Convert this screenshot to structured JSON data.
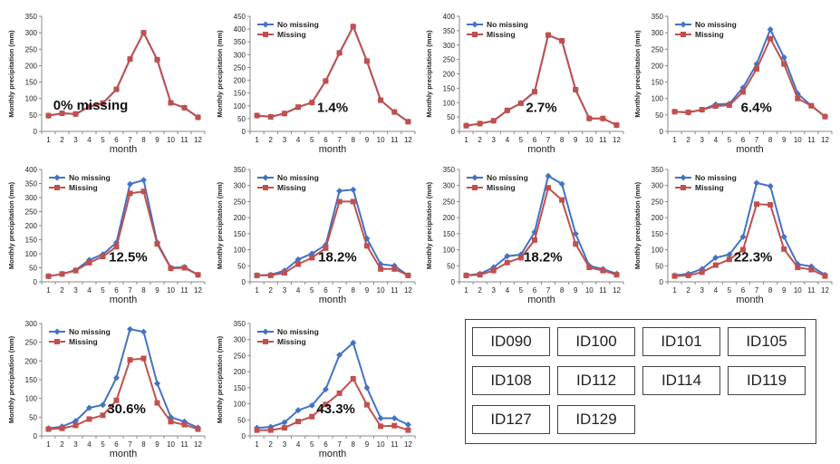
{
  "common": {
    "ylabel": "Monthly precipitation (mm)",
    "xlabel": "month",
    "legend": [
      "No missing",
      "Missing"
    ],
    "colors": {
      "no_missing": "#4472c4",
      "missing": "#c0504d"
    }
  },
  "chart_data": [
    {
      "type": "line",
      "annotation": "0% missing",
      "x": [
        1,
        2,
        3,
        4,
        5,
        6,
        7,
        8,
        9,
        10,
        11,
        12
      ],
      "ylim": [
        0,
        350
      ],
      "yticks": [
        0,
        50,
        100,
        150,
        200,
        250,
        300,
        350
      ],
      "legend_position": "none",
      "series": [
        {
          "name": "No missing",
          "values": [
            48,
            55,
            53,
            75,
            86,
            128,
            220,
            300,
            218,
            87,
            72,
            43
          ]
        },
        {
          "name": "Missing",
          "values": [
            48,
            55,
            53,
            75,
            86,
            128,
            220,
            300,
            218,
            87,
            72,
            43
          ]
        }
      ]
    },
    {
      "type": "line",
      "annotation": "1.4%",
      "x": [
        1,
        2,
        3,
        4,
        5,
        6,
        7,
        8,
        9,
        10,
        11,
        12
      ],
      "ylim": [
        0,
        450
      ],
      "yticks": [
        0,
        50,
        100,
        150,
        200,
        250,
        300,
        350,
        400,
        450
      ],
      "legend_position": "top-left",
      "series": [
        {
          "name": "No missing",
          "values": [
            62,
            57,
            70,
            95,
            113,
            197,
            307,
            410,
            275,
            122,
            76,
            38
          ]
        },
        {
          "name": "Missing",
          "values": [
            62,
            57,
            70,
            95,
            113,
            197,
            307,
            410,
            275,
            122,
            76,
            38
          ]
        }
      ]
    },
    {
      "type": "line",
      "annotation": "2.7%",
      "x": [
        1,
        2,
        3,
        4,
        5,
        6,
        7,
        8,
        9,
        10,
        11,
        12
      ],
      "ylim": [
        0,
        400
      ],
      "yticks": [
        0,
        50,
        100,
        150,
        200,
        250,
        300,
        350,
        400
      ],
      "legend_position": "top-left",
      "series": [
        {
          "name": "No missing",
          "values": [
            20,
            27,
            37,
            73,
            98,
            138,
            335,
            315,
            145,
            45,
            45,
            22
          ]
        },
        {
          "name": "Missing",
          "values": [
            20,
            27,
            37,
            73,
            98,
            138,
            335,
            315,
            145,
            45,
            45,
            22
          ]
        }
      ]
    },
    {
      "type": "line",
      "annotation": "6.4%",
      "x": [
        1,
        2,
        3,
        4,
        5,
        6,
        7,
        8,
        9,
        10,
        11,
        12
      ],
      "ylim": [
        0,
        350
      ],
      "yticks": [
        0,
        50,
        100,
        150,
        200,
        250,
        300,
        350
      ],
      "legend_position": "top-left",
      "series": [
        {
          "name": "No missing",
          "values": [
            60,
            58,
            66,
            82,
            84,
            133,
            205,
            310,
            225,
            115,
            78,
            45
          ]
        },
        {
          "name": "Missing",
          "values": [
            60,
            58,
            66,
            77,
            80,
            120,
            190,
            282,
            205,
            100,
            78,
            45
          ]
        }
      ]
    },
    {
      "type": "line",
      "annotation": "12.5%",
      "x": [
        1,
        2,
        3,
        4,
        5,
        6,
        7,
        8,
        9,
        10,
        11,
        12
      ],
      "ylim": [
        0,
        400
      ],
      "yticks": [
        0,
        50,
        100,
        150,
        200,
        250,
        300,
        350,
        400
      ],
      "legend_position": "top-left",
      "series": [
        {
          "name": "No missing",
          "values": [
            20,
            28,
            42,
            78,
            98,
            140,
            348,
            362,
            140,
            50,
            53,
            25
          ]
        },
        {
          "name": "Missing",
          "values": [
            20,
            28,
            40,
            68,
            90,
            125,
            315,
            322,
            135,
            48,
            50,
            25
          ]
        }
      ]
    },
    {
      "type": "line",
      "annotation": "18.2%",
      "x": [
        1,
        2,
        3,
        4,
        5,
        6,
        7,
        8,
        9,
        10,
        11,
        12
      ],
      "ylim": [
        0,
        350
      ],
      "yticks": [
        0,
        50,
        100,
        150,
        200,
        250,
        300,
        350
      ],
      "legend_position": "top-left",
      "series": [
        {
          "name": "No missing",
          "values": [
            20,
            22,
            35,
            70,
            88,
            115,
            283,
            287,
            135,
            55,
            50,
            20
          ]
        },
        {
          "name": "Missing",
          "values": [
            20,
            20,
            28,
            55,
            75,
            105,
            250,
            250,
            112,
            40,
            40,
            20
          ]
        }
      ]
    },
    {
      "type": "line",
      "annotation": "18.2%",
      "x": [
        1,
        2,
        3,
        4,
        5,
        6,
        7,
        8,
        9,
        10,
        11,
        12
      ],
      "ylim": [
        0,
        350
      ],
      "yticks": [
        0,
        50,
        100,
        150,
        200,
        250,
        300,
        350
      ],
      "legend_position": "top-left",
      "series": [
        {
          "name": "No missing",
          "values": [
            20,
            25,
            45,
            80,
            85,
            155,
            330,
            305,
            150,
            50,
            40,
            25
          ]
        },
        {
          "name": "Missing",
          "values": [
            20,
            22,
            35,
            60,
            75,
            130,
            293,
            255,
            118,
            45,
            35,
            22
          ]
        }
      ]
    },
    {
      "type": "line",
      "annotation": "22.3%",
      "x": [
        1,
        2,
        3,
        4,
        5,
        6,
        7,
        8,
        9,
        10,
        11,
        12
      ],
      "ylim": [
        0,
        350
      ],
      "yticks": [
        0,
        50,
        100,
        150,
        200,
        250,
        300,
        350
      ],
      "legend_position": "top-left",
      "series": [
        {
          "name": "No missing",
          "values": [
            20,
            25,
            40,
            75,
            85,
            140,
            308,
            298,
            140,
            55,
            48,
            22
          ]
        },
        {
          "name": "Missing",
          "values": [
            18,
            20,
            30,
            52,
            70,
            100,
            242,
            240,
            102,
            45,
            38,
            18
          ]
        }
      ]
    },
    {
      "type": "line",
      "annotation": "30.6%",
      "x": [
        1,
        2,
        3,
        4,
        5,
        6,
        7,
        8,
        9,
        10,
        11,
        12
      ],
      "ylim": [
        0,
        300
      ],
      "yticks": [
        0,
        50,
        100,
        150,
        200,
        250,
        300
      ],
      "legend_position": "top-left",
      "series": [
        {
          "name": "No missing",
          "values": [
            20,
            25,
            40,
            75,
            83,
            155,
            285,
            278,
            140,
            50,
            38,
            22
          ]
        },
        {
          "name": "Missing",
          "values": [
            18,
            20,
            28,
            45,
            55,
            95,
            203,
            207,
            88,
            38,
            30,
            18
          ]
        }
      ]
    },
    {
      "type": "line",
      "annotation": "43.3%",
      "x": [
        1,
        2,
        3,
        4,
        5,
        6,
        7,
        8,
        9,
        10,
        11,
        12
      ],
      "ylim": [
        0,
        350
      ],
      "yticks": [
        0,
        50,
        100,
        150,
        200,
        250,
        300,
        350
      ],
      "legend_position": "top-left",
      "series": [
        {
          "name": "No missing",
          "values": [
            25,
            28,
            42,
            80,
            95,
            145,
            252,
            290,
            150,
            55,
            55,
            35
          ]
        },
        {
          "name": "Missing",
          "values": [
            18,
            18,
            25,
            45,
            60,
            98,
            133,
            178,
            97,
            30,
            32,
            18
          ]
        }
      ]
    }
  ],
  "station_ids": [
    "ID090",
    "ID100",
    "ID101",
    "ID105",
    "ID108",
    "ID112",
    "ID114",
    "ID119",
    "ID127",
    "ID129"
  ]
}
